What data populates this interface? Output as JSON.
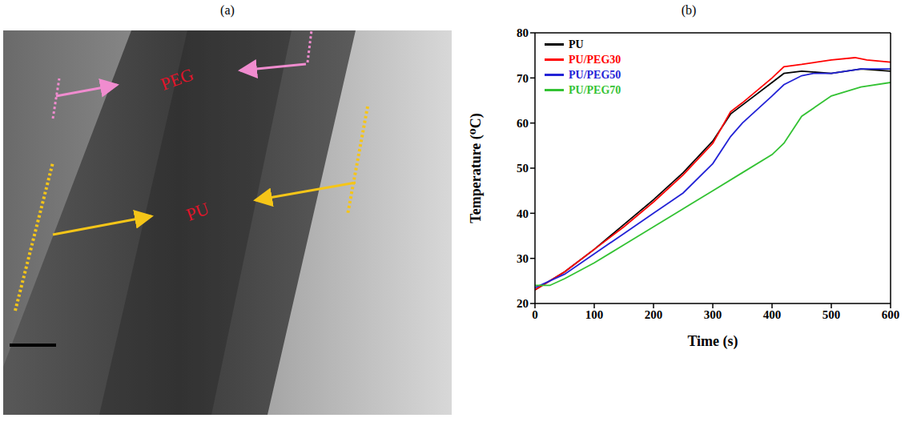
{
  "image_panel": {
    "title": "(a)",
    "labels": [
      "PEG",
      "PU"
    ]
  },
  "chart_data": {
    "type": "line",
    "title": "(b)",
    "x_label": "Time (s)",
    "y_label": "Temperature (⁰C)",
    "xlim": [
      0,
      600
    ],
    "xticks": [
      0,
      100,
      200,
      300,
      400,
      500,
      600
    ],
    "ylim": [
      20,
      80
    ],
    "yticks": [
      20,
      30,
      40,
      50,
      60,
      70,
      80
    ],
    "grid": false,
    "legend": "upper left",
    "series": [
      {
        "name": "PU",
        "color": "#000000",
        "x": [
          0,
          50,
          100,
          150,
          200,
          250,
          300,
          330,
          350,
          400,
          420,
          450,
          500,
          550,
          600
        ],
        "values": [
          23,
          27,
          32,
          37.5,
          43,
          49,
          56,
          62,
          64,
          69,
          71,
          71.5,
          71,
          72,
          71.5
        ]
      },
      {
        "name": "PU/PEG30",
        "color": "#ff0000",
        "x": [
          0,
          50,
          100,
          150,
          200,
          250,
          300,
          330,
          350,
          400,
          420,
          450,
          500,
          540,
          560,
          600
        ],
        "values": [
          23,
          27,
          32,
          37,
          42.5,
          48.5,
          55.5,
          62.5,
          64.5,
          70,
          72.5,
          73,
          74,
          74.5,
          74,
          73.5
        ]
      },
      {
        "name": "PU/PEG50",
        "color": "#2323d6",
        "x": [
          0,
          50,
          100,
          150,
          200,
          250,
          300,
          330,
          350,
          400,
          420,
          450,
          470,
          500,
          550,
          600
        ],
        "values": [
          23.5,
          26.5,
          31,
          35.5,
          40,
          44.5,
          51,
          57,
          60,
          66,
          68.5,
          70.5,
          71,
          71,
          72,
          72
        ]
      },
      {
        "name": "PU/PEG70",
        "color": "#33c233",
        "x": [
          0,
          25,
          50,
          100,
          150,
          200,
          250,
          300,
          350,
          400,
          420,
          450,
          500,
          550,
          600
        ],
        "values": [
          24,
          24,
          25.5,
          29,
          33,
          37,
          41,
          45,
          49,
          53,
          55.5,
          61.5,
          66,
          68,
          69
        ]
      }
    ]
  }
}
